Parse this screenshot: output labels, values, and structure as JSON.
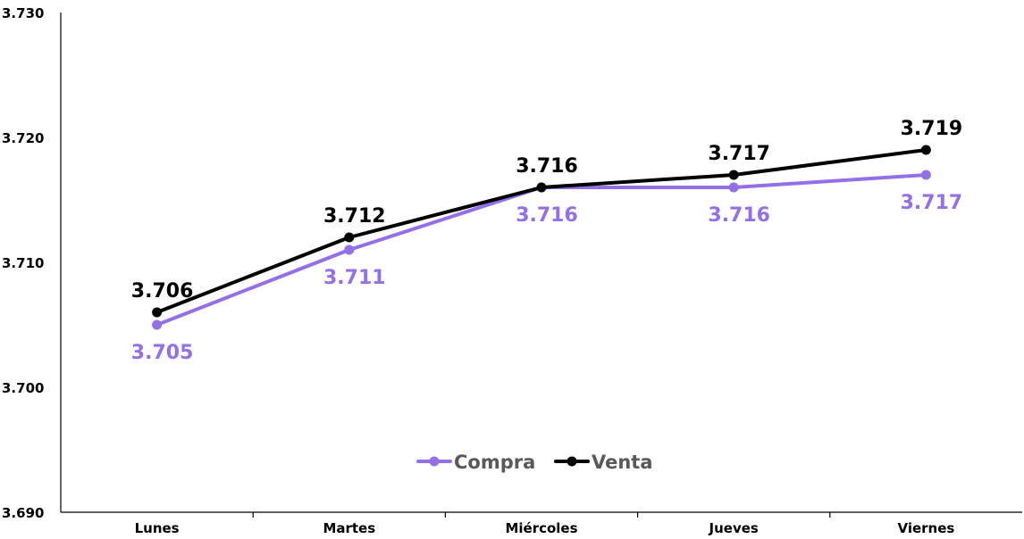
{
  "chart_data": {
    "type": "line",
    "title": "",
    "xlabel": "",
    "ylabel": "",
    "categories": [
      "Lunes",
      "Martes",
      "Miércoles",
      "Jueves",
      "Viernes"
    ],
    "y_ticks": [
      "3.690",
      "3.700",
      "3.710",
      "3.720",
      "3.730"
    ],
    "y_tick_values": [
      3.69,
      3.7,
      3.71,
      3.72,
      3.73
    ],
    "ylim": [
      3.69,
      3.73
    ],
    "grid": false,
    "legend_position": "bottom-center",
    "series": [
      {
        "name": "Compra",
        "color": "#9370E8",
        "values": [
          3.705,
          3.711,
          3.716,
          3.716,
          3.717
        ],
        "labels": [
          "3.705",
          "3.711",
          "3.716",
          "3.716",
          "3.717"
        ]
      },
      {
        "name": "Venta",
        "color": "#000000",
        "values": [
          3.706,
          3.712,
          3.716,
          3.717,
          3.719
        ],
        "labels": [
          "3.706",
          "3.712",
          "3.716",
          "3.717",
          "3.719"
        ]
      }
    ]
  }
}
